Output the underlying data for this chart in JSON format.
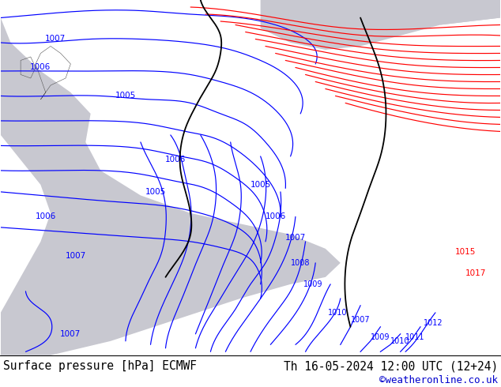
{
  "title_left": "Surface pressure [hPa] ECMWF",
  "title_right": "Th 16-05-2024 12:00 UTC (12+24)",
  "credit": "©weatheronline.co.uk",
  "bg_green": "#aad4a0",
  "bg_gray": "#c8c8d0",
  "bg_white": "#ffffff",
  "credit_color": "#0000cc",
  "title_fontsize": 10.5,
  "credit_fontsize": 9,
  "fig_width": 6.34,
  "fig_height": 4.9,
  "dpi": 100
}
